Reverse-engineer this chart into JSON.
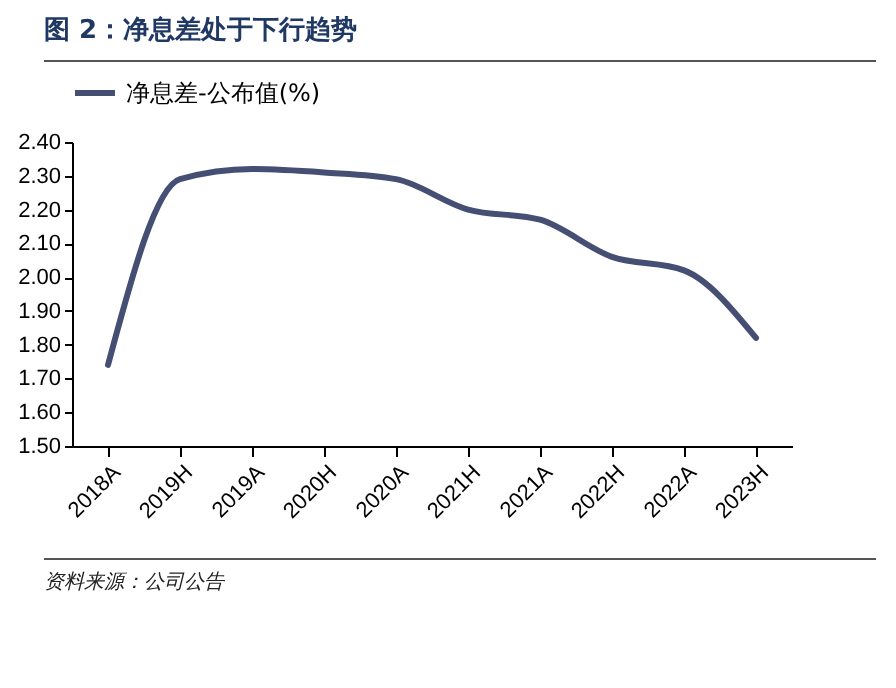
{
  "chart_data": {
    "type": "line",
    "title": "图 2：净息差处于下行趋势",
    "categories": [
      "2018A",
      "2019H",
      "2019A",
      "2020H",
      "2020A",
      "2021H",
      "2021A",
      "2022H",
      "2022A",
      "2023H"
    ],
    "series": [
      {
        "name": "净息差-公布值(%)",
        "color": "#454f73",
        "values": [
          1.74,
          2.29,
          2.32,
          2.31,
          2.29,
          2.2,
          2.17,
          2.06,
          2.02,
          1.82
        ]
      }
    ],
    "ylim": [
      1.5,
      2.4
    ],
    "yticks": [
      {
        "value": 1.5,
        "label": "1.50"
      },
      {
        "value": 1.6,
        "label": "1.60"
      },
      {
        "value": 1.7,
        "label": "1.70"
      },
      {
        "value": 1.8,
        "label": "1.80"
      },
      {
        "value": 1.9,
        "label": "1.90"
      },
      {
        "value": 2.0,
        "label": "2.00"
      },
      {
        "value": 2.1,
        "label": "2.10"
      },
      {
        "value": 2.2,
        "label": "2.20"
      },
      {
        "value": 2.3,
        "label": "2.30"
      },
      {
        "value": 2.4,
        "label": "2.40"
      }
    ],
    "grid": false,
    "legend": "top",
    "annotations": [
      "资料来源：公司公告"
    ]
  }
}
